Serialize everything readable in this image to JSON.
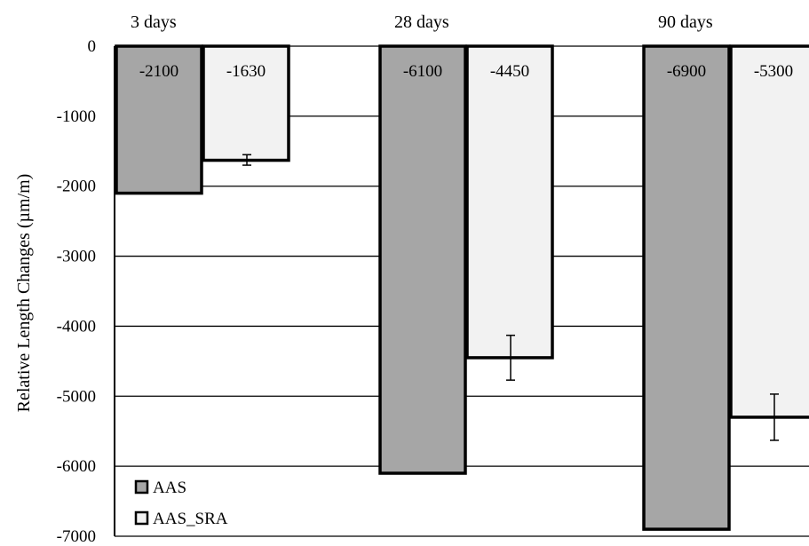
{
  "chart_data": {
    "type": "bar",
    "categories": [
      "3 days",
      "28 days",
      "90 days"
    ],
    "series": [
      {
        "name": "AAS",
        "values": [
          -2100,
          -6100,
          -6900
        ],
        "color": "#a6a6a6"
      },
      {
        "name": "AAS_SRA",
        "values": [
          -1630,
          -4450,
          -5300
        ],
        "color": "#f2f2f2",
        "error_low": [
          -1700,
          -4770,
          -5630
        ],
        "error_high": [
          -1550,
          -4130,
          -4970
        ]
      }
    ],
    "data_labels": [
      [
        "-2100",
        "-6100",
        "-6900"
      ],
      [
        "-1630",
        "-4450",
        "-5300"
      ]
    ],
    "ylabel": "Relative Length Changes (µm/m)",
    "xlabel": "",
    "ylim": [
      -7000,
      0
    ],
    "yticks": [
      0,
      -1000,
      -2000,
      -3000,
      -4000,
      -5000,
      -6000,
      -7000
    ],
    "category_labels_position": "top",
    "grid": true,
    "legend_position": "bottom-left"
  }
}
